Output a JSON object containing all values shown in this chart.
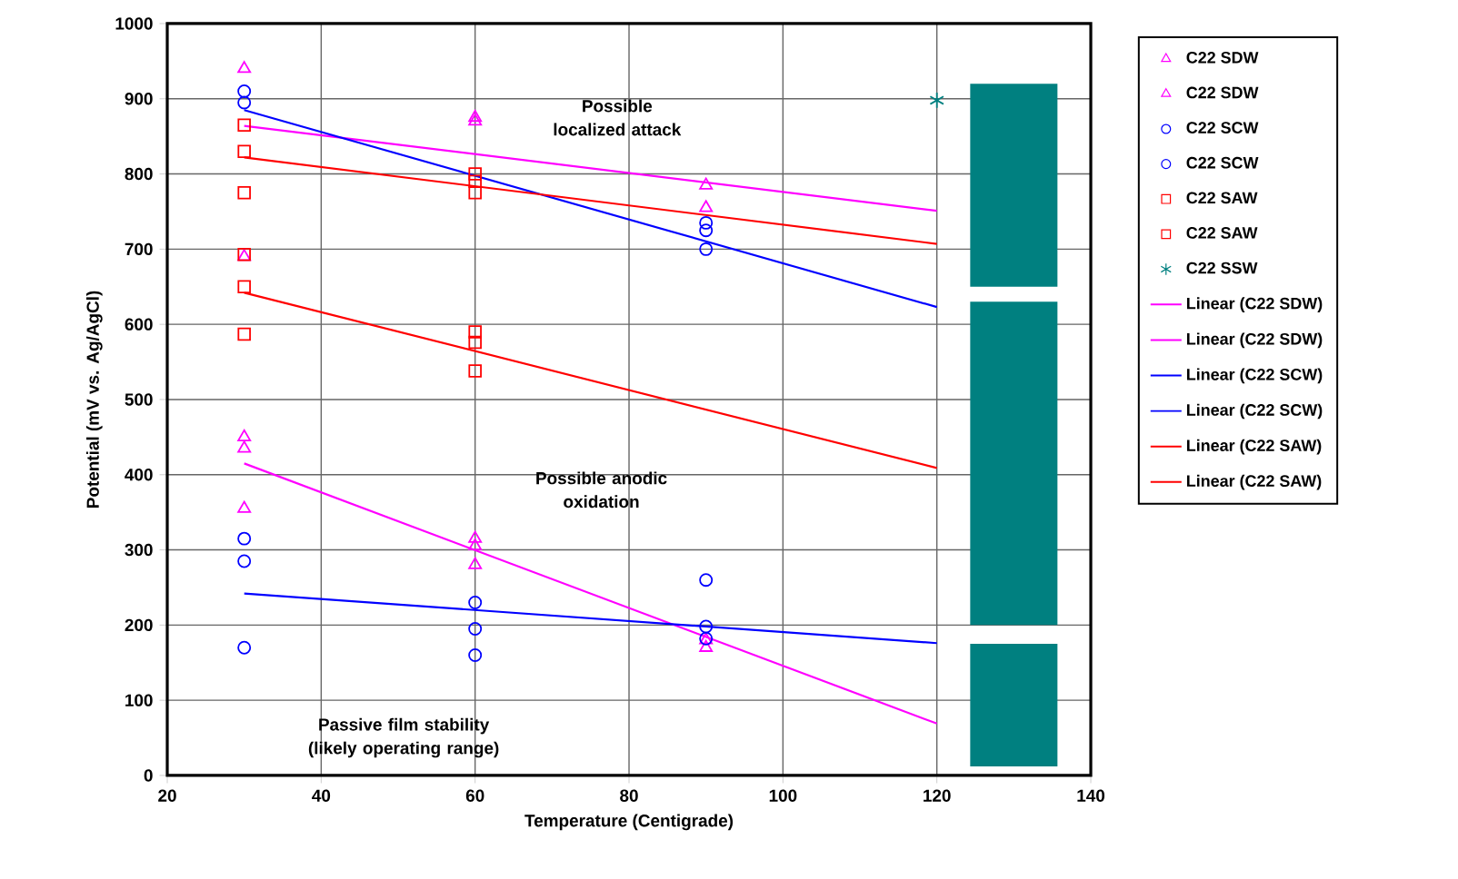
{
  "chart_data": {
    "type": "scatter",
    "xlabel": "Temperature (Centigrade)",
    "ylabel": "Potential (mV vs. Ag/AgCl)",
    "xlim": [
      20,
      140
    ],
    "xticks": [
      20,
      40,
      60,
      80,
      100,
      120,
      140
    ],
    "ylim": [
      0,
      1000
    ],
    "yticks": [
      0,
      100,
      200,
      300,
      400,
      500,
      600,
      700,
      800,
      900,
      1000
    ],
    "grid": true,
    "legend": "right",
    "annotations": [
      "Possible localized attack",
      "Possible anodic oxidation",
      "Passive film stability (likely operating range)"
    ],
    "series": [
      {
        "name": "C22 SDW",
        "marker": "triangle",
        "color": "#ff00ff",
        "x": [
          30,
          30,
          60,
          60,
          90,
          90
        ],
        "values": [
          940,
          690,
          875,
          870,
          785,
          755
        ]
      },
      {
        "name": "C22 SDW",
        "marker": "triangle",
        "color": "#ff00ff",
        "x": [
          30,
          30,
          30,
          60,
          60,
          60,
          90,
          90
        ],
        "values": [
          450,
          435,
          355,
          315,
          305,
          280,
          180,
          170
        ]
      },
      {
        "name": "C22 SCW",
        "marker": "circle",
        "color": "#0000ff",
        "x": [
          30,
          30,
          90,
          90,
          90
        ],
        "values": [
          910,
          895,
          735,
          725,
          700
        ]
      },
      {
        "name": "C22 SCW",
        "marker": "circle",
        "color": "#0000ff",
        "x": [
          30,
          30,
          30,
          60,
          60,
          60,
          90,
          90,
          90
        ],
        "values": [
          315,
          285,
          170,
          230,
          195,
          160,
          260,
          198,
          182
        ]
      },
      {
        "name": "C22 SAW",
        "marker": "square",
        "color": "#ff0000",
        "x": [
          30,
          30,
          30,
          60,
          60,
          60
        ],
        "values": [
          865,
          830,
          775,
          800,
          790,
          775
        ]
      },
      {
        "name": "C22 SAW",
        "marker": "square",
        "color": "#ff0000",
        "x": [
          30,
          30,
          30,
          60,
          60,
          60
        ],
        "values": [
          693,
          650,
          587,
          590,
          576,
          538
        ]
      },
      {
        "name": "C22 SSW",
        "marker": "cross",
        "color": "#008080",
        "x": [
          120
        ],
        "values": [
          898
        ]
      },
      {
        "name": "Linear (C22 SDW)",
        "type": "line",
        "color": "#ff00ff",
        "x": [
          30,
          120
        ],
        "values": [
          864,
          751
        ]
      },
      {
        "name": "Linear (C22 SDW)",
        "type": "line",
        "color": "#ff00ff",
        "x": [
          30,
          120
        ],
        "values": [
          415,
          69
        ]
      },
      {
        "name": "Linear (C22 SCW)",
        "type": "line",
        "color": "#0000ff",
        "x": [
          30,
          120
        ],
        "values": [
          885,
          623
        ]
      },
      {
        "name": "Linear (C22 SCW)",
        "type": "line",
        "color": "#0000ff",
        "x": [
          30,
          120
        ],
        "values": [
          242,
          176
        ]
      },
      {
        "name": "Linear (C22 SAW)",
        "type": "line",
        "color": "#ff0000",
        "x": [
          30,
          120
        ],
        "values": [
          822,
          707
        ]
      },
      {
        "name": "Linear (C22 SAW)",
        "type": "line",
        "color": "#ff0000",
        "x": [
          30,
          120
        ],
        "values": [
          642,
          409
        ]
      },
      {
        "type": "bar",
        "color": "#008080",
        "x": [
          130
        ],
        "base": [
          650
        ],
        "values": [
          270
        ]
      },
      {
        "type": "bar",
        "color": "#008080",
        "x": [
          130
        ],
        "base": [
          200
        ],
        "values": [
          430
        ]
      },
      {
        "type": "bar",
        "color": "#008080",
        "x": [
          130
        ],
        "base": [
          12
        ],
        "values": [
          163
        ]
      }
    ]
  }
}
